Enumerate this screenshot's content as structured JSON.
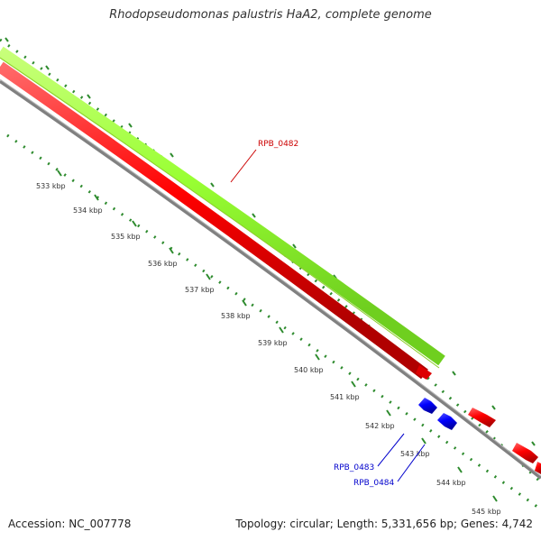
{
  "title": "Rhodopseudomonas palustris HaA2, complete genome",
  "accession": "Accession: NC_007778",
  "summary": "Topology: circular; Length: 5,331,656 bp; Genes: 4,742",
  "colors": {
    "backbone": "#808080",
    "plus_strand_gene": "#ff0000",
    "minus_strand_gene": "#0000ff",
    "highlight_feature": "#99ff33",
    "ticks": "#2e8b2e",
    "plus_label": "#cc0000",
    "minus_label": "#0000cc"
  },
  "scale_labels": [
    "533 kbp",
    "534 kbp",
    "535 kbp",
    "536 kbp",
    "537 kbp",
    "538 kbp",
    "539 kbp",
    "540 kbp",
    "541 kbp",
    "542 kbp",
    "543 kbp",
    "544 kbp",
    "545 kbp"
  ],
  "gene_labels": [
    {
      "name": "RPB_0482",
      "strand": "plus"
    },
    {
      "name": "RPB_0483",
      "strand": "minus"
    },
    {
      "name": "RPB_0484",
      "strand": "minus"
    }
  ]
}
